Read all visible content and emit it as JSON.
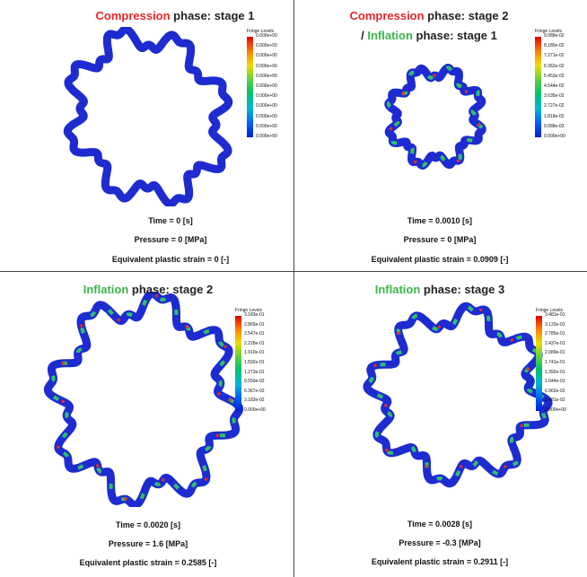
{
  "panels": [
    {
      "title": [
        [
          {
            "text": "Compression",
            "color": "#e8262a"
          },
          {
            "text": " phase: stage 1"
          }
        ]
      ],
      "legend": {
        "title": "Fringe Levels",
        "levels": [
          "0.000e+00",
          "0.000e+00",
          "0.000e+00",
          "0.000e+00",
          "0.000e+00",
          "0.000e+00",
          "0.000e+00",
          "0.000e+00",
          "0.000e+00",
          "0.000e+00",
          "0.000e+00"
        ]
      },
      "lines": [
        "Time = 0 [s]",
        "Pressure = 0 [MPa]",
        "Equivalent plastic strain = 0 [-]"
      ]
    },
    {
      "title": [
        [
          {
            "text": "Compression",
            "color": "#e8262a"
          },
          {
            "text": " phase: stage 2"
          }
        ],
        [
          {
            "text": "/ "
          },
          {
            "text": "Inflation",
            "color": "#3bb54a"
          },
          {
            "text": " phase: stage 1"
          }
        ]
      ],
      "legend": {
        "title": "Fringe Levels",
        "levels": [
          "9.088e-02",
          "8.180e-02",
          "7.271e-02",
          "6.362e-02",
          "5.453e-02",
          "4.544e-02",
          "3.635e-02",
          "2.727e-02",
          "1.818e-02",
          "9.088e-03",
          "0.000e+00"
        ]
      },
      "lines": [
        "Time = 0.0010 [s]",
        "Pressure = 0 [MPa]",
        "Equivalent plastic strain = 0.0909 [-]"
      ]
    },
    {
      "title": [
        [
          {
            "text": "Inflation",
            "color": "#3bb54a"
          },
          {
            "text": " phase: stage 2"
          }
        ]
      ],
      "legend": {
        "title": "Fringe Levels",
        "levels": [
          "3.183e-01",
          "2.865e-01",
          "2.547e-01",
          "2.228e-01",
          "1.910e-01",
          "1.592e-01",
          "1.273e-01",
          "9.550e-02",
          "6.367e-02",
          "3.183e-02",
          "0.000e+00"
        ]
      },
      "lines": [
        "Time = 0.0020 [s]",
        "Pressure = 1.6 [MPa]",
        "Equivalent plastic strain = 0.2585 [-]"
      ]
    },
    {
      "title": [
        [
          {
            "text": "Inflation",
            "color": "#3bb54a"
          },
          {
            "text": " phase: stage 3"
          }
        ]
      ],
      "legend": {
        "title": "Fringe Levels",
        "levels": [
          "3.481e-01",
          "3.133e-01",
          "2.785e-01",
          "2.437e-01",
          "2.089e-01",
          "1.741e-01",
          "1.392e-01",
          "1.044e-01",
          "6.962e-02",
          "3.481e-02",
          "0.000e+00"
        ]
      },
      "lines": [
        "Time = 0.0028 [s]",
        "Pressure = -0.3 [MPa]",
        "Equivalent plastic strain = 0.2911 [-]"
      ]
    }
  ]
}
